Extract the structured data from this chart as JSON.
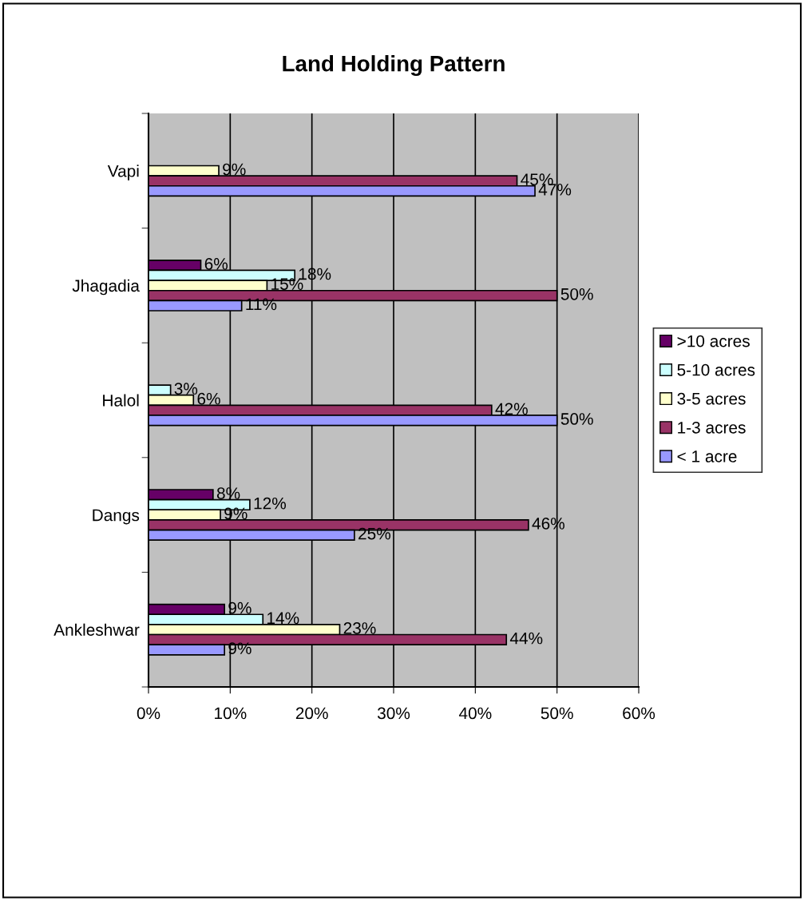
{
  "chart_data": {
    "type": "bar",
    "orientation": "horizontal",
    "title": "Land Holding Pattern",
    "categories": [
      "Vapi",
      "Jhagadia",
      "Halol",
      "Dangs",
      "Ankleshwar"
    ],
    "series": [
      {
        "name": ">10 acres",
        "color": "#660066",
        "values": [
          null,
          6.4,
          null,
          7.9,
          9.3
        ],
        "value_labels": [
          null,
          "6%",
          null,
          "8%",
          "9%"
        ]
      },
      {
        "name": "5-10 acres",
        "color": "#ccffff",
        "values": [
          null,
          17.9,
          2.7,
          12.4,
          14.0
        ],
        "value_labels": [
          null,
          "18%",
          "3%",
          "12%",
          "14%"
        ]
      },
      {
        "name": "3-5 acres",
        "color": "#ffffcc",
        "values": [
          8.6,
          14.5,
          5.5,
          8.8,
          23.4
        ],
        "value_labels": [
          "9%",
          "15%",
          "6%",
          "9%",
          "23%"
        ]
      },
      {
        "name": "1-3 acres",
        "color": "#993366",
        "values": [
          45.1,
          50.0,
          42.0,
          46.5,
          43.8
        ],
        "value_labels": [
          "45%",
          "50%",
          "42%",
          "46%",
          "44%"
        ]
      },
      {
        "name": "< 1 acre",
        "color": "#9999ff",
        "values": [
          47.3,
          11.4,
          50.0,
          25.2,
          9.3
        ],
        "value_labels": [
          "47%",
          "11%",
          "50%",
          "25%",
          "9%"
        ]
      }
    ],
    "xlim": [
      0,
      60
    ],
    "xticks": [
      {
        "value": 0,
        "label": "0%"
      },
      {
        "value": 10,
        "label": "10%"
      },
      {
        "value": 20,
        "label": "20%"
      },
      {
        "value": 30,
        "label": "30%"
      },
      {
        "value": 40,
        "label": "40%"
      },
      {
        "value": 50,
        "label": "50%"
      },
      {
        "value": 60,
        "label": "60%"
      }
    ],
    "grid": "x",
    "legend": "right"
  }
}
